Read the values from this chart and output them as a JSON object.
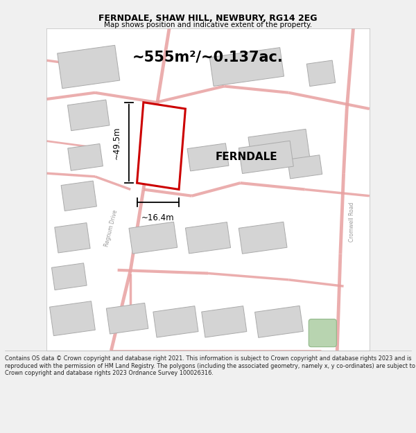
{
  "title_line1": "FERNDALE, SHAW HILL, NEWBURY, RG14 2EG",
  "title_line2": "Map shows position and indicative extent of the property.",
  "area_text": "~555m²/~0.137ac.",
  "property_label": "FERNDALE",
  "dim_vertical": "~49.5m",
  "dim_horizontal": "~16.4m",
  "footer_text": "Contains OS data © Crown copyright and database right 2021. This information is subject to Crown copyright and database rights 2023 and is reproduced with the permission of HM Land Registry. The polygons (including the associated geometry, namely x, y co-ordinates) are subject to Crown copyright and database rights 2023 Ordnance Survey 100026316.",
  "bg_color": "#f0f0f0",
  "map_bg": "#ffffff",
  "road_color": "#e8a0a0",
  "road_lw": 2.5,
  "building_color": "#d4d4d4",
  "building_edge": "#aaaaaa",
  "plot_color": "#ffffff",
  "plot_edge": "#cc0000",
  "plot_lw": 2.2,
  "dim_line_color": "#000000",
  "text_color": "#000000",
  "green_area_color": "#b8d4b0",
  "green_area_edge": "#90b888"
}
